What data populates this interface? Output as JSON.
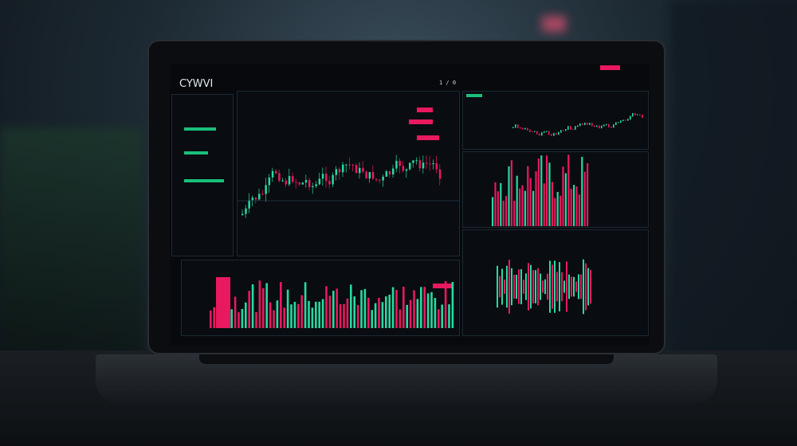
{
  "screen": {
    "app_title": "CYWVI",
    "page_indicator": "1 / 0"
  },
  "colors": {
    "up": "#27d9a0",
    "down": "#e8195f",
    "bg": "#07090d"
  }
}
